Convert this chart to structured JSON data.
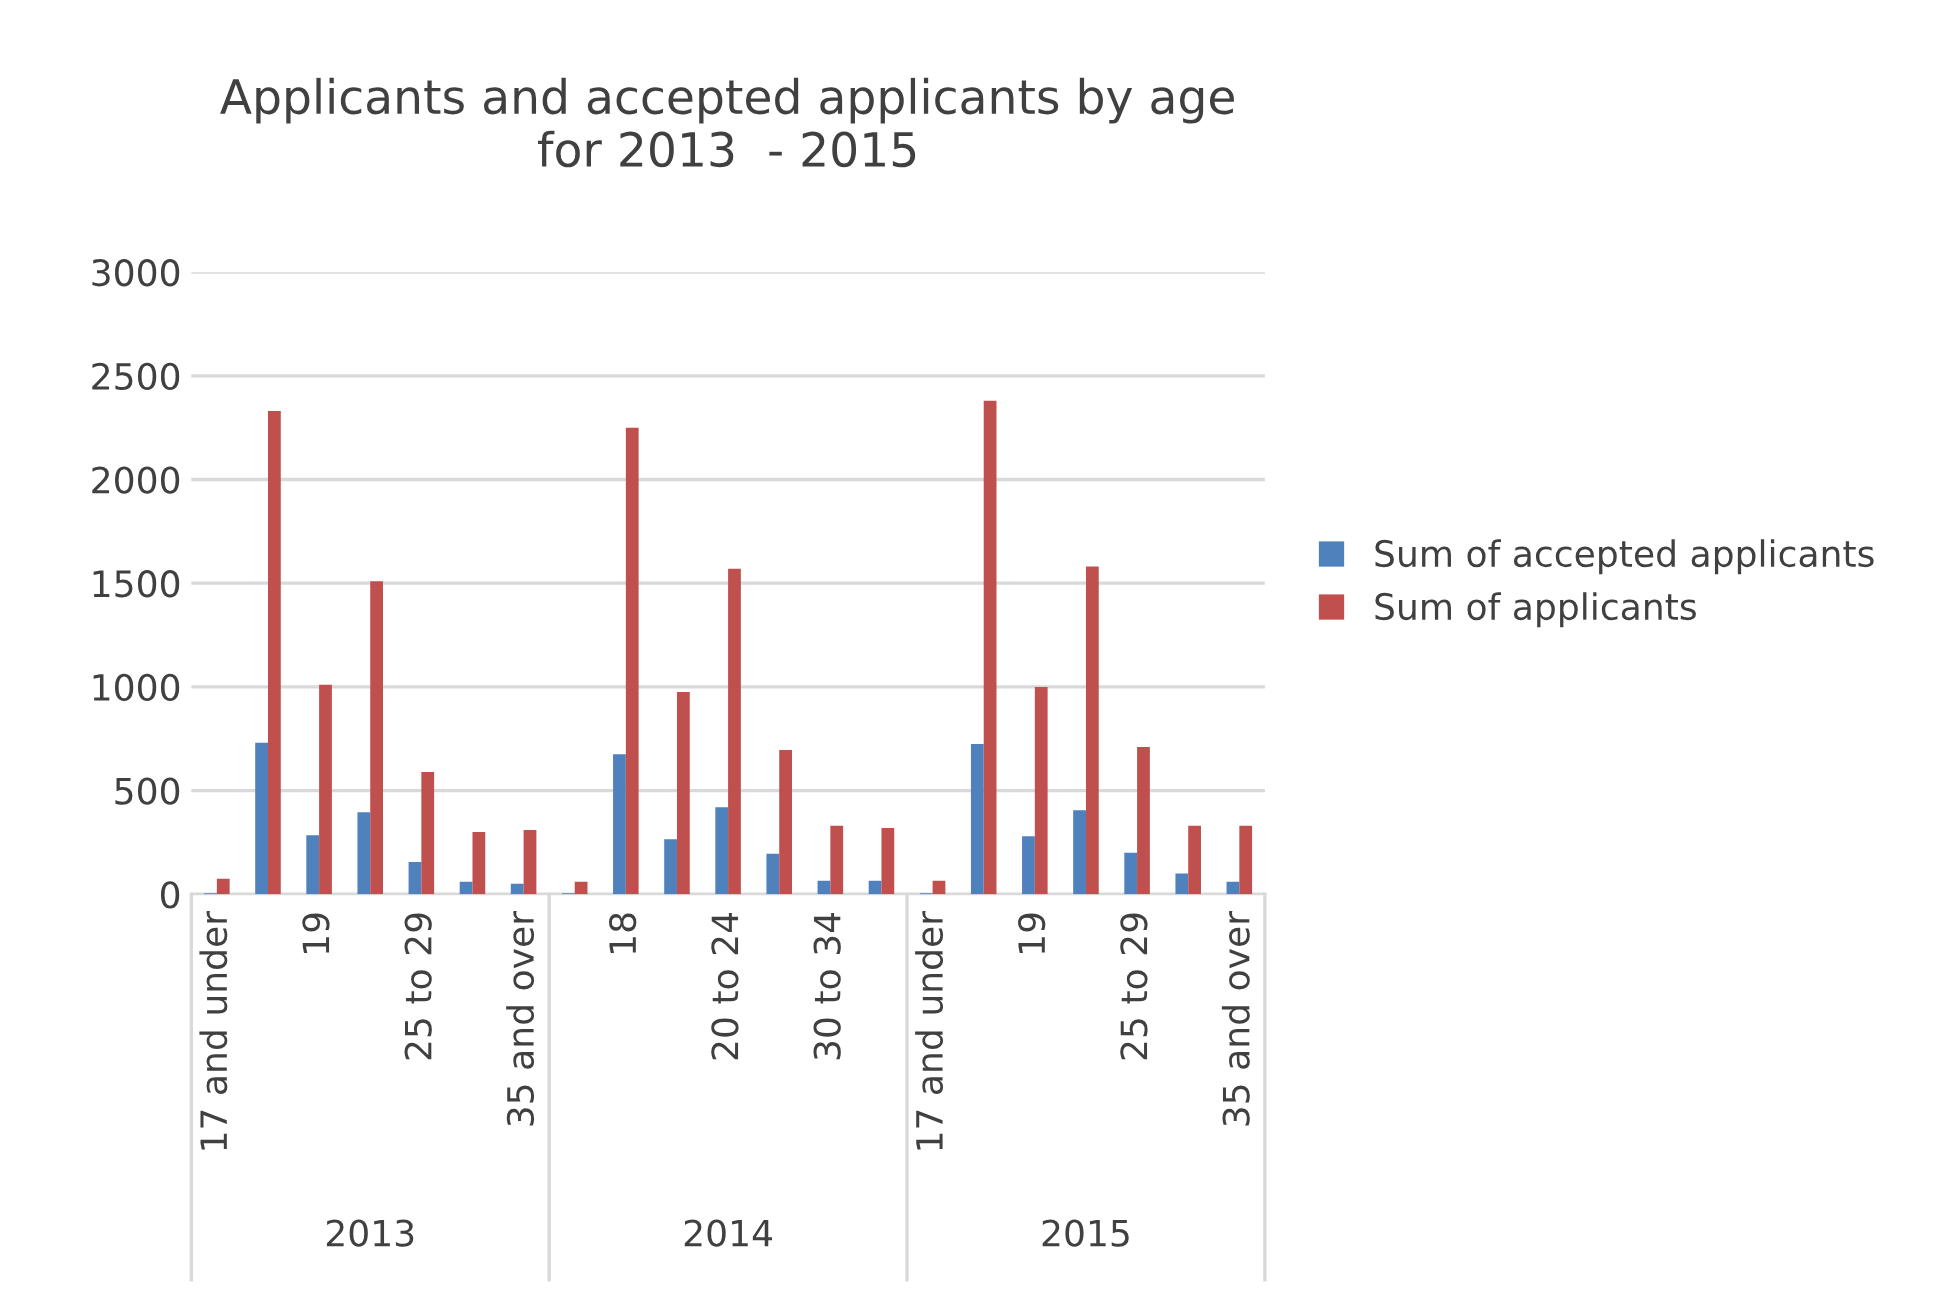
{
  "chart_data": {
    "type": "bar",
    "title": "Applicants and accepted applicants by age\nfor 2013  - 2015",
    "categories": [
      "17 and under",
      null,
      "19",
      null,
      "25 to 29",
      null,
      "35 and over",
      null,
      "18",
      null,
      "20 to 24",
      null,
      "30 to 34",
      null,
      "17 and under",
      null,
      "19",
      null,
      "25 to 29",
      null,
      "35 and over"
    ],
    "annotations": [
      "2013",
      "2014",
      "2015"
    ],
    "series": [
      {
        "name": "Sum of accepted applicants",
        "color": "#4f81bd",
        "values": [
          5,
          730,
          285,
          395,
          155,
          60,
          50,
          5,
          675,
          265,
          420,
          195,
          65,
          65,
          5,
          725,
          280,
          405,
          200,
          100,
          60
        ]
      },
      {
        "name": "Sum of applicants",
        "color": "#c0504d",
        "values": [
          75,
          2330,
          1010,
          1510,
          590,
          300,
          310,
          60,
          2250,
          975,
          1570,
          695,
          330,
          320,
          65,
          2380,
          1000,
          1580,
          710,
          330,
          330
        ]
      }
    ],
    "ylim": [
      0,
      3000
    ],
    "yticks": [
      0,
      500,
      1000,
      1500,
      2000,
      2500,
      3000
    ],
    "grid": "y",
    "legend": "right"
  }
}
